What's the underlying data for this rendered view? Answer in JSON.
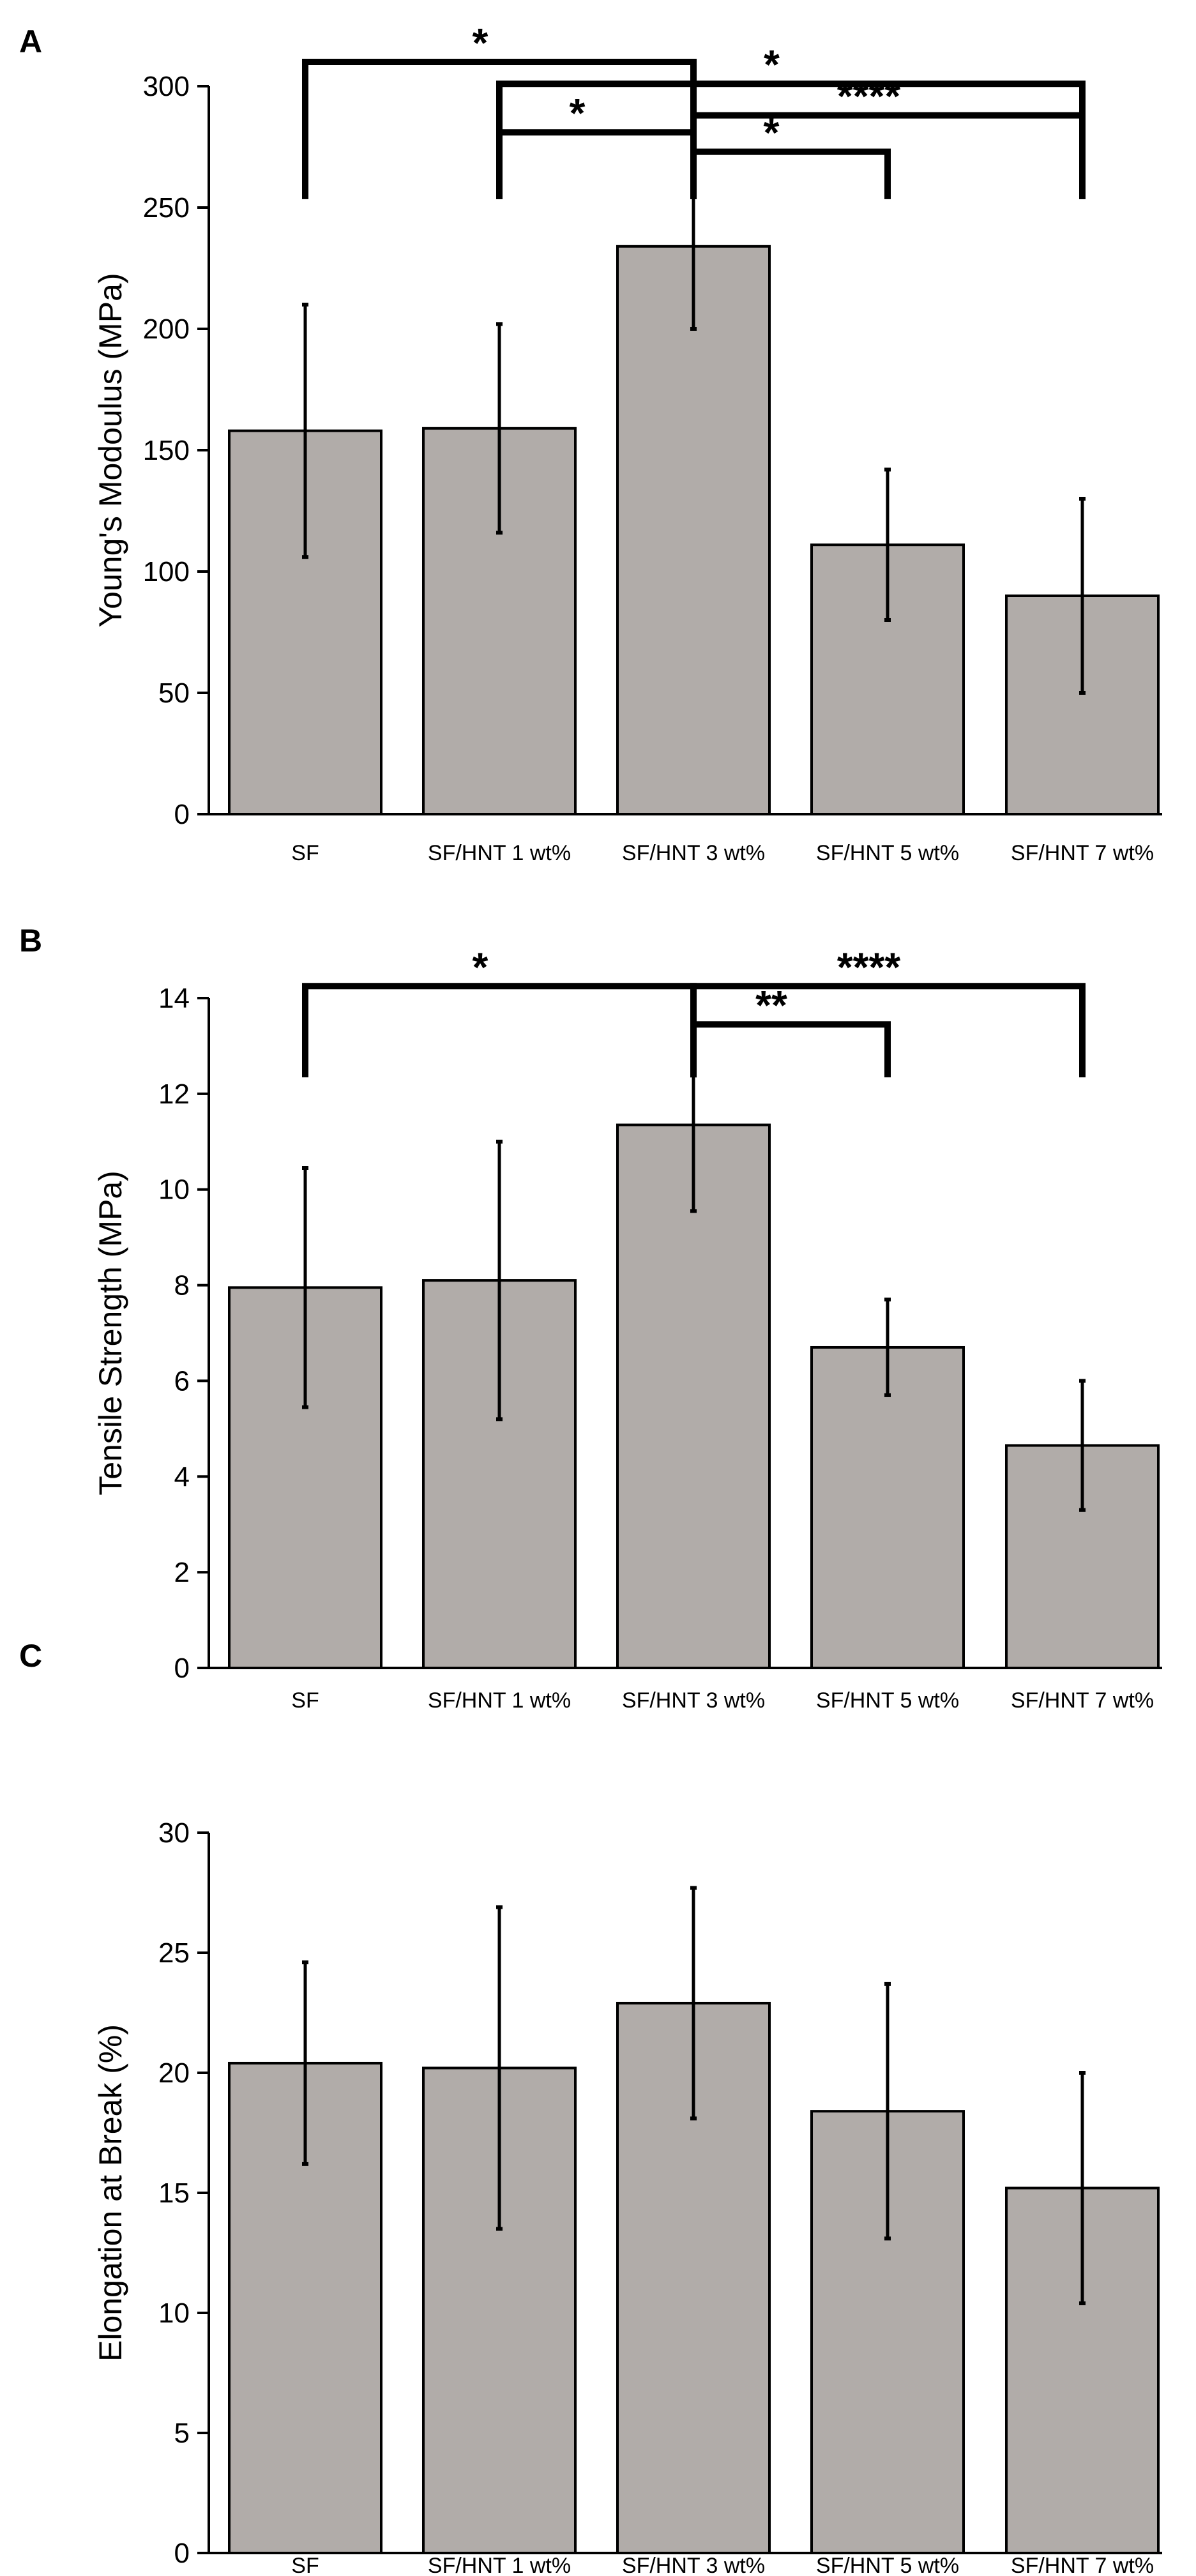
{
  "chart_data": [
    {
      "panel": "A",
      "type": "bar",
      "ylabel": "Young's Modoulus (MPa)",
      "categories": [
        "SF",
        "SF/HNT 1 wt%",
        "SF/HNT 3 wt%",
        "SF/HNT 5 wt%",
        "SF/HNT 7 wt%"
      ],
      "values": [
        158,
        159,
        234,
        111,
        90
      ],
      "errors": [
        52,
        43,
        34,
        31,
        40
      ],
      "ylim": [
        0,
        300
      ],
      "yticks": [
        0,
        50,
        100,
        150,
        200,
        250,
        300
      ],
      "bar_color": "#b1aca9",
      "significance": [
        {
          "from": 0,
          "to": 2,
          "label": "*",
          "level": 310
        },
        {
          "from": 1,
          "to": 4,
          "label": "*",
          "level": 301
        },
        {
          "from": 1,
          "to": 2,
          "label": "*",
          "level": 281
        },
        {
          "from": 2,
          "to": 4,
          "label": "****",
          "level": 288
        },
        {
          "from": 2,
          "to": 3,
          "label": "*",
          "level": 273
        }
      ]
    },
    {
      "panel": "B",
      "type": "bar",
      "ylabel": "Tensile Strength (MPa)",
      "categories": [
        "SF",
        "SF/HNT 1 wt%",
        "SF/HNT 3 wt%",
        "SF/HNT 5 wt%",
        "SF/HNT 7 wt%"
      ],
      "values": [
        7.95,
        8.1,
        11.35,
        6.7,
        4.65
      ],
      "errors": [
        2.5,
        2.9,
        1.8,
        1.0,
        1.35
      ],
      "ylim": [
        0,
        14
      ],
      "yticks": [
        0,
        2,
        4,
        6,
        8,
        10,
        12,
        14
      ],
      "bar_color": "#b1aca9",
      "significance": [
        {
          "from": 0,
          "to": 2,
          "label": "*",
          "level": 14.25
        },
        {
          "from": 2,
          "to": 4,
          "label": "****",
          "level": 14.25
        },
        {
          "from": 2,
          "to": 3,
          "label": "**",
          "level": 13.45
        }
      ]
    },
    {
      "panel": "C",
      "type": "bar",
      "ylabel": "Elongation at Break (%)",
      "categories": [
        "SF",
        "SF/HNT 1 wt%",
        "SF/HNT 3 wt%",
        "SF/HNT 5 wt%",
        "SF/HNT 7 wt%"
      ],
      "values": [
        20.4,
        20.2,
        22.9,
        18.4,
        15.2
      ],
      "errors": [
        4.2,
        6.7,
        4.8,
        5.3,
        4.8
      ],
      "ylim": [
        0,
        30
      ],
      "yticks": [
        0,
        5,
        10,
        15,
        20,
        25,
        30
      ],
      "bar_color": "#b1aca9",
      "significance": []
    }
  ]
}
